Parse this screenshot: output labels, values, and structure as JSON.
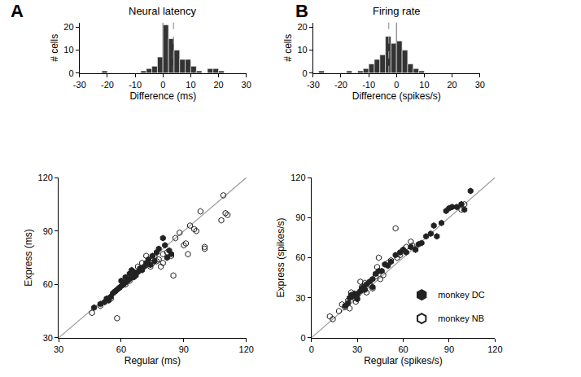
{
  "chart_data": [
    {
      "type": "histogram",
      "panel": "A",
      "title": "Neural latency",
      "xlabel": "Difference (ms)",
      "ylabel": "# cells",
      "bins": [
        -30,
        -28,
        -26,
        -24,
        -22,
        -20,
        -18,
        -16,
        -14,
        -12,
        -10,
        -8,
        -6,
        -4,
        -2,
        0,
        2,
        4,
        6,
        8,
        10,
        12,
        14,
        16,
        18,
        20,
        22,
        24,
        26,
        28,
        30
      ],
      "values": [
        0,
        0,
        0,
        0,
        1,
        0,
        0,
        0,
        0,
        0,
        0,
        1,
        2,
        3,
        7,
        21,
        15,
        10,
        6,
        6,
        3,
        1,
        0,
        2,
        2,
        1,
        0,
        0,
        0,
        0
      ],
      "color": "#333333",
      "xlim": [
        -30,
        30
      ],
      "xticks": [
        -30,
        -20,
        -10,
        0,
        10,
        20,
        30
      ],
      "ylim": [
        0,
        22
      ],
      "yticks": [
        0,
        10,
        20
      ],
      "zero_line": 0,
      "mean": 3.8
    },
    {
      "type": "scatter",
      "xlabel": "Regular (ms)",
      "ylabel": "Express (ms)",
      "xlim": [
        30,
        120
      ],
      "xticks": [
        30,
        60,
        90,
        120
      ],
      "ylim": [
        30,
        120
      ],
      "yticks": [
        30,
        60,
        90,
        120
      ],
      "reference_line": {
        "x": [
          30,
          120
        ],
        "y": [
          30,
          120
        ]
      },
      "series": [
        {
          "name": "monkey DC",
          "color": "#222222",
          "marker": "hexagon",
          "x": [
            47,
            50,
            52,
            53,
            54,
            55,
            56,
            57,
            58,
            59,
            60,
            61,
            62,
            63,
            64,
            64,
            65,
            66,
            67,
            68,
            69,
            70,
            71,
            72,
            73,
            74,
            75,
            76,
            77,
            78,
            80,
            81,
            82,
            83,
            84,
            66,
            62,
            60
          ],
          "values": [
            47,
            49,
            50,
            52,
            51,
            53,
            55,
            56,
            57,
            58,
            59,
            60,
            61,
            62,
            63,
            66,
            68,
            64,
            65,
            67,
            69,
            68,
            70,
            72,
            74,
            71,
            76,
            73,
            78,
            80,
            86,
            82,
            75,
            79,
            77,
            67,
            64,
            62
          ]
        },
        {
          "name": "monkey NB",
          "color": "#222222",
          "marker": "hexagon-open",
          "x": [
            46,
            50,
            55,
            57,
            58,
            59,
            62,
            64,
            66,
            68,
            70,
            72,
            74,
            75,
            76,
            77,
            78,
            79,
            80,
            82,
            84,
            85,
            86,
            88,
            90,
            91,
            92,
            93,
            95,
            96,
            98,
            100,
            100,
            108,
            109,
            110,
            111,
            72,
            80
          ],
          "values": [
            44,
            48,
            52,
            56,
            41,
            58,
            60,
            62,
            65,
            70,
            72,
            71,
            70,
            72,
            76,
            73,
            74,
            70,
            77,
            78,
            76,
            65,
            86,
            89,
            82,
            83,
            77,
            93,
            91,
            90,
            101,
            80,
            81,
            96,
            110,
            100,
            99,
            76,
            72
          ]
        }
      ]
    },
    {
      "type": "histogram",
      "panel": "B",
      "title": "Firing rate",
      "xlabel": "Difference (spikes/s)",
      "ylabel": "# cells",
      "bins": [
        -30,
        -28,
        -26,
        -24,
        -22,
        -20,
        -18,
        -16,
        -14,
        -12,
        -10,
        -8,
        -6,
        -4,
        -2,
        0,
        2,
        4,
        6,
        8,
        10,
        12,
        14,
        16,
        18,
        20,
        22,
        24,
        26,
        28,
        30
      ],
      "values": [
        0,
        1,
        0,
        0,
        0,
        0,
        1,
        0,
        1,
        2,
        4,
        6,
        8,
        16,
        13,
        14,
        10,
        4,
        2,
        1,
        0,
        0,
        0,
        0,
        0,
        0,
        0,
        0,
        0,
        0
      ],
      "color": "#333333",
      "xlim": [
        -30,
        30
      ],
      "xticks": [
        -30,
        -20,
        -10,
        0,
        10,
        20,
        30
      ],
      "ylim": [
        0,
        22
      ],
      "yticks": [
        0,
        10,
        20
      ],
      "zero_line": 0,
      "mean": -2.8
    },
    {
      "type": "scatter",
      "xlabel": "Regular (spikes/s)",
      "ylabel": "Express (spikes/s)",
      "xlim": [
        0,
        120
      ],
      "xticks": [
        0,
        30,
        60,
        90,
        120
      ],
      "ylim": [
        0,
        120
      ],
      "yticks": [
        0,
        30,
        60,
        90,
        120
      ],
      "legend": "lower right",
      "reference_line": {
        "x": [
          0,
          120
        ],
        "y": [
          0,
          120
        ]
      },
      "series": [
        {
          "name": "monkey DC",
          "color": "#222222",
          "marker": "hexagon",
          "x": [
            22,
            24,
            25,
            26,
            27,
            28,
            30,
            32,
            33,
            34,
            35,
            36,
            38,
            40,
            42,
            44,
            46,
            48,
            50,
            52,
            55,
            58,
            60,
            62,
            65,
            68,
            70,
            72,
            75,
            78,
            80,
            82,
            85,
            88,
            90,
            92,
            95,
            98,
            100,
            104,
            40,
            30
          ],
          "values": [
            24,
            26,
            30,
            32,
            31,
            33,
            33,
            35,
            37,
            38,
            36,
            40,
            42,
            44,
            48,
            50,
            50,
            55,
            54,
            57,
            62,
            64,
            66,
            64,
            68,
            66,
            70,
            71,
            76,
            78,
            84,
            76,
            86,
            95,
            97,
            98,
            98,
            100,
            96,
            110,
            38,
            29
          ]
        },
        {
          "name": "monkey NB",
          "color": "#222222",
          "marker": "hexagon-open",
          "x": [
            12,
            14,
            18,
            20,
            22,
            24,
            25,
            26,
            28,
            29,
            30,
            32,
            33,
            35,
            38,
            40,
            42,
            43,
            44,
            45,
            47,
            50,
            52,
            55,
            56,
            58,
            62,
            65,
            66,
            68,
            98,
            100,
            36
          ],
          "values": [
            16,
            14,
            20,
            25,
            23,
            28,
            22,
            34,
            30,
            27,
            32,
            42,
            38,
            41,
            40,
            37,
            46,
            53,
            60,
            44,
            47,
            56,
            58,
            82,
            60,
            62,
            68,
            72,
            69,
            66,
            96,
            100,
            34
          ]
        }
      ]
    }
  ]
}
